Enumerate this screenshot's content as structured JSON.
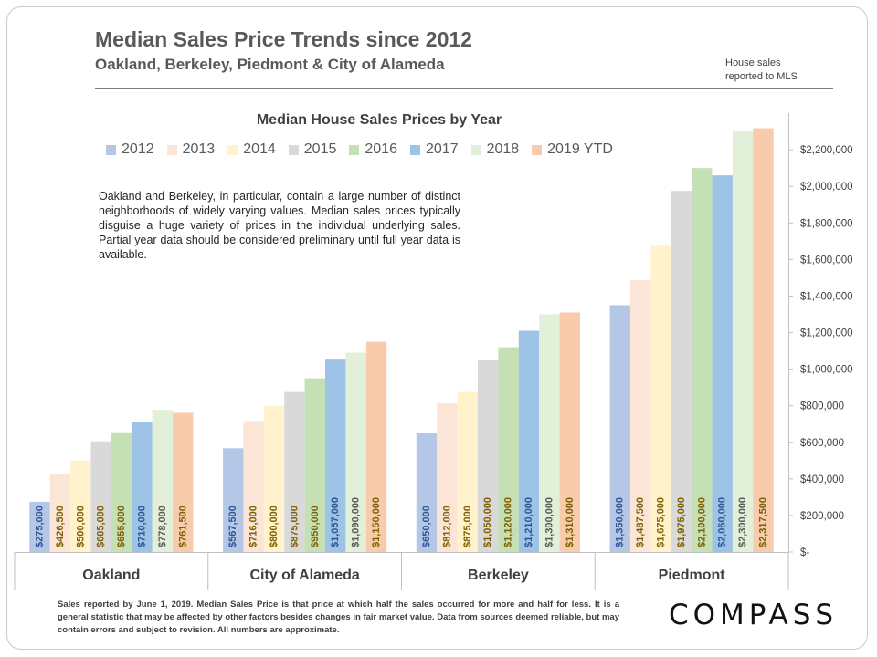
{
  "header": {
    "title": "Median Sales Price Trends since 2012",
    "subtitle": "Oakland,  Berkeley, Piedmont & City of Alameda",
    "source_note": "House sales\nreported to MLS"
  },
  "annotation": "Oakland and Berkeley, in particular, contain a large number of distinct neighborhoods of widely varying values. Median sales prices typically disguise a huge variety of prices in the individual underlying sales. Partial year data should be considered preliminary until full year data is available.",
  "footnote": "Sales reported by June 1, 2019. Median Sales Price is that price at which half the sales occurred for more and half for less. It is a general statistic that may be affected by other factors besides changes in fair market value. Data from sources deemed reliable, but may contain errors and subject to revision.  All numbers are approximate.",
  "logo": "COMPASS",
  "chart_data": {
    "type": "bar",
    "title": "Median House Sales Prices by Year",
    "categories": [
      "Oakland",
      "City of Alameda",
      "Berkeley",
      "Piedmont"
    ],
    "series": [
      {
        "name": "2012",
        "color": "#b4c7e7",
        "values": [
          275000,
          567500,
          650000,
          1350000
        ],
        "labels": [
          "$275,000",
          "$567,500",
          "$650,000",
          "$1,350,000"
        ]
      },
      {
        "name": "2013",
        "color": "#fbe5d6",
        "values": [
          426500,
          716000,
          812000,
          1487500
        ],
        "labels": [
          "$426,500",
          "$716,000",
          "$812,000",
          "$1,487,500"
        ]
      },
      {
        "name": "2014",
        "color": "#fff2cc",
        "values": [
          500000,
          800000,
          875000,
          1675000
        ],
        "labels": [
          "$500,000",
          "$800,000",
          "$875,000",
          "$1,675,000"
        ]
      },
      {
        "name": "2015",
        "color": "#d9d9d9",
        "values": [
          605000,
          875000,
          1050000,
          1975000
        ],
        "labels": [
          "$605,000",
          "$875,000",
          "$1,050,000",
          "$1,975,000"
        ]
      },
      {
        "name": "2016",
        "color": "#c5e0b4",
        "values": [
          655000,
          950000,
          1120000,
          2100000
        ],
        "labels": [
          "$655,000",
          "$950,000",
          "$1,120,000",
          "$2,100,000"
        ]
      },
      {
        "name": "2017",
        "color": "#9dc3e6",
        "values": [
          710000,
          1057000,
          1210000,
          2060000
        ],
        "labels": [
          "$710,000",
          "$1,057,000",
          "$1,210,000",
          "$2,060,000"
        ]
      },
      {
        "name": "2018",
        "color": "#e2f0d9",
        "values": [
          778000,
          1090000,
          1300000,
          2300000
        ],
        "labels": [
          "$778,000",
          "$1,090,000",
          "$1,300,000",
          "$2,300,000"
        ]
      },
      {
        "name": "2019 YTD",
        "color": "#f8cbad",
        "values": [
          761500,
          1150000,
          1310000,
          2317500
        ],
        "labels": [
          "$761,500",
          "$1,150,000",
          "$1,310,000",
          "$2,317,500"
        ]
      }
    ],
    "label_colors": {
      "default": "#7f6000",
      "2012": "#2f5597",
      "2017": "#2f5597",
      "2018": "#595959"
    },
    "yaxis": {
      "position": "right",
      "ylim": [
        0,
        2400000
      ],
      "ticks": [
        0,
        200000,
        400000,
        600000,
        800000,
        1000000,
        1200000,
        1400000,
        1600000,
        1800000,
        2000000,
        2200000
      ],
      "tick_labels": [
        "$-",
        "$200,000",
        "$400,000",
        "$600,000",
        "$800,000",
        "$1,000,000",
        "$1,200,000",
        "$1,400,000",
        "$1,600,000",
        "$1,800,000",
        "$2,000,000",
        "$2,200,000"
      ]
    },
    "legend": "top",
    "grid": false
  }
}
